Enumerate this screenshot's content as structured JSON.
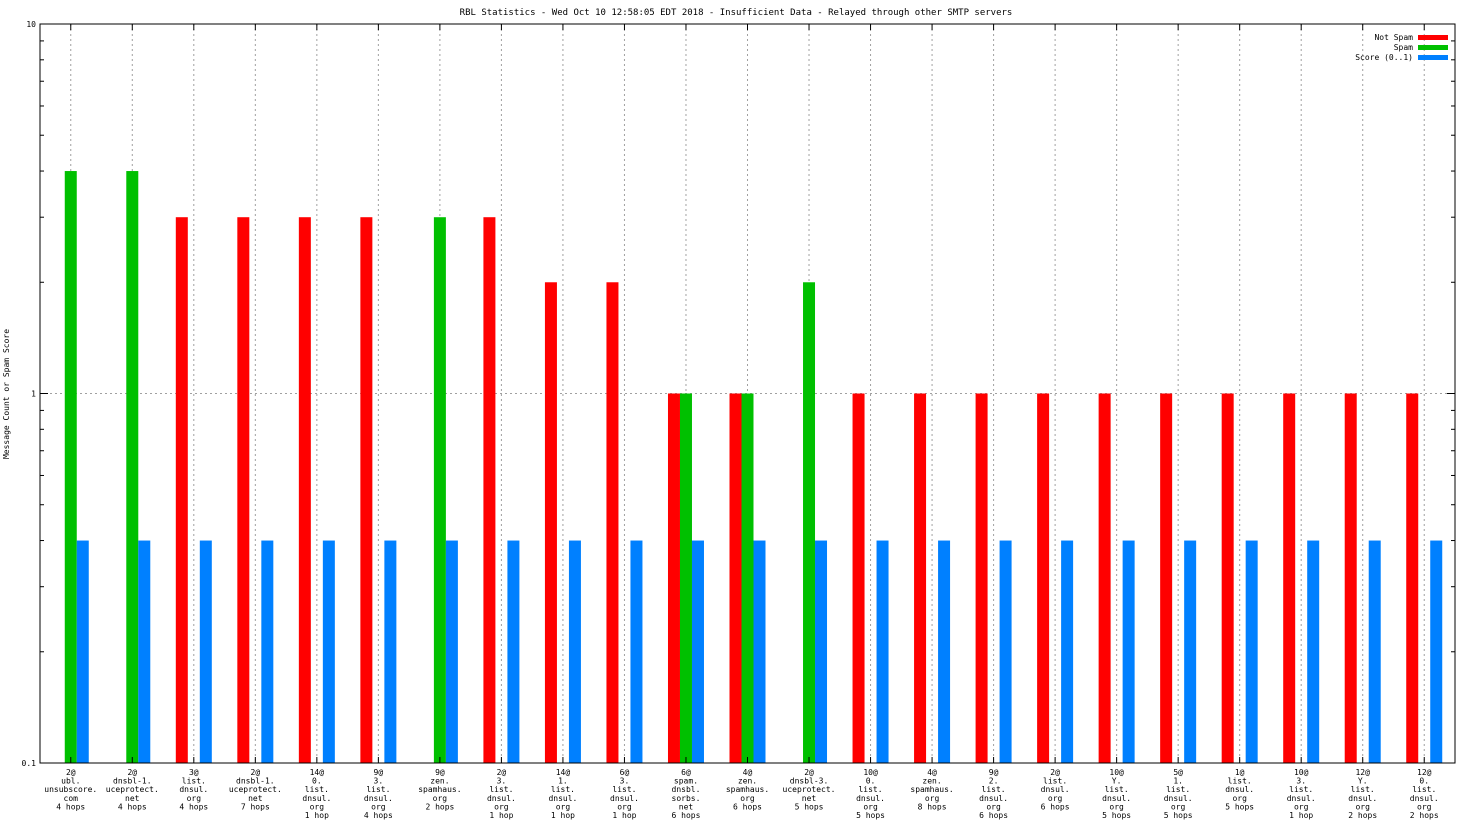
{
  "chart_data": {
    "type": "bar",
    "title": "RBL Statistics - Wed Oct 10 12:58:05 EDT 2018 - Insufficient Data - Relayed through other SMTP servers",
    "xlabel": "",
    "ylabel": "Message Count or Spam Score",
    "yscale": "log",
    "ylim": [
      0.1,
      10
    ],
    "yticks": [
      {
        "value": 0.1,
        "label": "0.1"
      },
      {
        "value": 1,
        "label": "1"
      },
      {
        "value": 10,
        "label": "10"
      }
    ],
    "grid": "on (dotted)",
    "legend_position": "top-right",
    "categories": [
      [
        "2@",
        "ubl.",
        "unsubscore.",
        "com",
        "4 hops"
      ],
      [
        "2@",
        "dnsbl-1.",
        "uceprotect.",
        "net",
        "4 hops"
      ],
      [
        "3@",
        "list.",
        "dnsul.",
        "org",
        "4 hops"
      ],
      [
        "2@",
        "dnsbl-1.",
        "uceprotect.",
        "net",
        "7 hops"
      ],
      [
        "14@",
        "0.",
        "list.",
        "dnsul.",
        "org",
        "1 hop"
      ],
      [
        "9@",
        "3.",
        "list.",
        "dnsul.",
        "org",
        "4 hops"
      ],
      [
        "9@",
        "zen.",
        "spamhaus.",
        "org",
        "2 hops"
      ],
      [
        "2@",
        "3.",
        "list.",
        "dnsul.",
        "org",
        "1 hop"
      ],
      [
        "14@",
        "1.",
        "list.",
        "dnsul.",
        "org",
        "1 hop"
      ],
      [
        "6@",
        "3.",
        "list.",
        "dnsul.",
        "org",
        "1 hop"
      ],
      [
        "6@",
        "spam.",
        "dnsbl.",
        "sorbs.",
        "net",
        "6 hops"
      ],
      [
        "4@",
        "zen.",
        "spamhaus.",
        "org",
        "6 hops"
      ],
      [
        "2@",
        "dnsbl-3.",
        "uceprotect.",
        "net",
        "5 hops"
      ],
      [
        "10@",
        "0.",
        "list.",
        "dnsul.",
        "org",
        "5 hops"
      ],
      [
        "4@",
        "zen.",
        "spamhaus.",
        "org",
        "8 hops"
      ],
      [
        "9@",
        "2.",
        "list.",
        "dnsul.",
        "org",
        "6 hops"
      ],
      [
        "2@",
        "list.",
        "dnsul.",
        "org",
        "6 hops"
      ],
      [
        "10@",
        "Y.",
        "list.",
        "dnsul.",
        "org",
        "5 hops"
      ],
      [
        "5@",
        "1.",
        "list.",
        "dnsul.",
        "org",
        "5 hops"
      ],
      [
        "1@",
        "list.",
        "dnsul.",
        "org",
        "5 hops"
      ],
      [
        "10@",
        "3.",
        "list.",
        "dnsul.",
        "org",
        "1 hop"
      ],
      [
        "12@",
        "Y.",
        "list.",
        "dnsul.",
        "org",
        "2 hops"
      ],
      [
        "12@",
        "0.",
        "list.",
        "dnsul.",
        "org",
        "2 hops"
      ]
    ],
    "series": [
      {
        "name": "Not Spam",
        "color": "#ff0000",
        "values": [
          0,
          0,
          3,
          3,
          3,
          3,
          0,
          3,
          2,
          2,
          1,
          1,
          0,
          1,
          1,
          1,
          1,
          1,
          1,
          1,
          1,
          1,
          1
        ]
      },
      {
        "name": "Spam",
        "color": "#00c000",
        "values": [
          4,
          4,
          0,
          0,
          0,
          0,
          3,
          0,
          0,
          0,
          1,
          1,
          2,
          0,
          0,
          0,
          0,
          0,
          0,
          0,
          0,
          0,
          0
        ]
      },
      {
        "name": "Score (0..1)",
        "color": "#0080ff",
        "values": [
          0.4,
          0.4,
          0.4,
          0.4,
          0.4,
          0.4,
          0.4,
          0.4,
          0.4,
          0.4,
          0.4,
          0.4,
          0.4,
          0.4,
          0.4,
          0.4,
          0.4,
          0.4,
          0.4,
          0.4,
          0.4,
          0.4,
          0.4
        ]
      }
    ]
  }
}
